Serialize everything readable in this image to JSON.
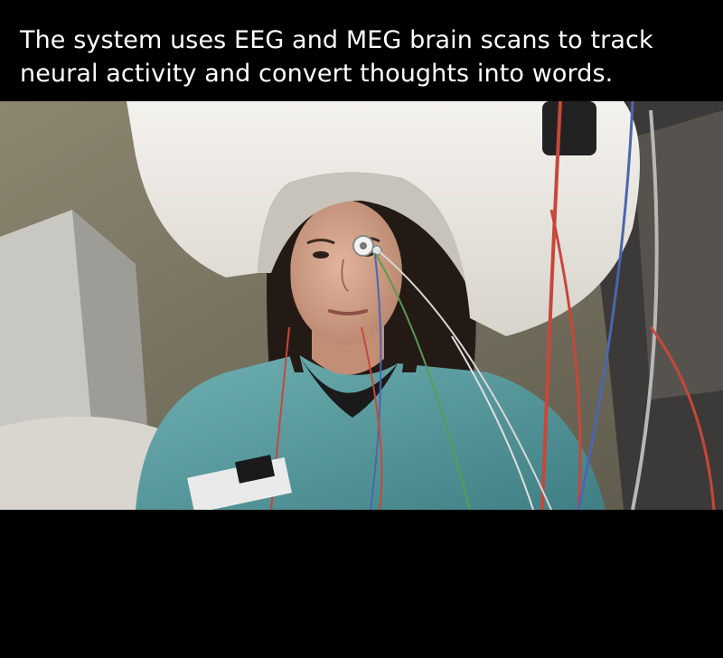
{
  "caption": {
    "line1": "The system uses EEG and MEG brain scans to track",
    "line2": "neural activity and convert thoughts into words."
  },
  "photo": {
    "subject": "woman-seated-under-meg-scanner-helmet",
    "palette": {
      "background": "#000000",
      "wall": "#7a7560",
      "helmet": "#ece9e2",
      "scrubs": "#5f9ea0",
      "hair": "#231a15",
      "skin": "#d6a58c",
      "wire_red": "#c8473a",
      "wire_blue": "#4a66b0",
      "wire_green": "#5a9a52"
    }
  }
}
